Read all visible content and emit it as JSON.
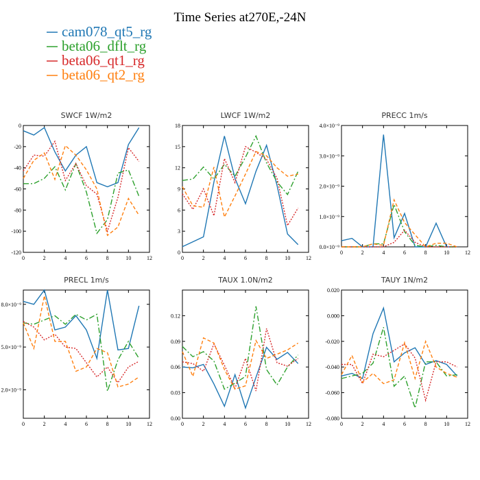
{
  "title": "Time Series at270E,-24N",
  "colors": {
    "cam078_qt5_rg": "#1f77b4",
    "beta06_dflt_rg": "#2ca02c",
    "beta06_qt1_rg": "#d62728",
    "beta06_qt2_rg": "#ff7f0e"
  },
  "legend": [
    {
      "name": "cam078_qt5_rg",
      "color": "#1f77b4",
      "dash": ""
    },
    {
      "name": "beta06_dflt_rg",
      "color": "#2ca02c",
      "dash": "8,3,2,3"
    },
    {
      "name": "beta06_qt1_rg",
      "color": "#d62728",
      "dash": "2,2"
    },
    {
      "name": "beta06_qt2_rg",
      "color": "#ff7f0e",
      "dash": "5,3"
    }
  ],
  "chart_data": [
    {
      "type": "line",
      "title": "SWCF   1W/m2",
      "x": [
        0,
        1,
        2,
        3,
        4,
        5,
        6,
        7,
        8,
        9,
        10,
        11
      ],
      "xlim": [
        0,
        12
      ],
      "xticks": [
        0,
        2,
        4,
        6,
        8,
        10,
        12
      ],
      "ylim": [
        -120,
        0
      ],
      "yticks": [
        -120,
        -100,
        -80,
        -60,
        -40,
        -20,
        0
      ],
      "ytick_labels": [
        "-120",
        "-100",
        "-80",
        "-60",
        "-40",
        "-20",
        "0"
      ],
      "series": [
        {
          "name": "cam078_qt5_rg",
          "values": [
            -5,
            -9,
            -2,
            -25,
            -43,
            -28,
            -20,
            -54,
            -58,
            -54,
            -18,
            -2
          ]
        },
        {
          "name": "beta06_dflt_rg",
          "values": [
            -55,
            -55,
            -50,
            -39,
            -61,
            -36,
            -63,
            -102,
            -89,
            -45,
            -42,
            -67
          ]
        },
        {
          "name": "beta06_qt1_rg",
          "values": [
            -43,
            -28,
            -29,
            -15,
            -52,
            -36,
            -57,
            -65,
            -100,
            -68,
            -21,
            -34
          ]
        },
        {
          "name": "beta06_qt2_rg",
          "values": [
            -50,
            -33,
            -26,
            -51,
            -19,
            -28,
            -42,
            -60,
            -104,
            -96,
            -69,
            -85
          ]
        }
      ]
    },
    {
      "type": "line",
      "title": "LWCF   1W/m2",
      "x": [
        0,
        1,
        2,
        3,
        4,
        5,
        6,
        7,
        8,
        9,
        10,
        11
      ],
      "xlim": [
        0,
        12
      ],
      "xticks": [
        0,
        2,
        4,
        6,
        8,
        10,
        12
      ],
      "ylim": [
        0,
        18
      ],
      "yticks": [
        0,
        3,
        6,
        9,
        12,
        15,
        18
      ],
      "ytick_labels": [
        "0",
        "3",
        "6",
        "9",
        "12",
        "15",
        "18"
      ],
      "series": [
        {
          "name": "cam078_qt5_rg",
          "values": [
            0.8,
            1.5,
            2.2,
            10,
            16.5,
            10.5,
            6.9,
            11.5,
            15.2,
            9.5,
            2.6,
            1.1
          ]
        },
        {
          "name": "beta06_dflt_rg",
          "values": [
            10.2,
            10.4,
            12.1,
            10.4,
            12.5,
            10.8,
            13.5,
            16.5,
            12.7,
            10,
            8.2,
            11.5
          ]
        },
        {
          "name": "beta06_qt1_rg",
          "values": [
            8.3,
            6.1,
            9,
            5.2,
            13.3,
            9.9,
            15,
            14.2,
            13.2,
            10.5,
            3.8,
            6.3
          ]
        },
        {
          "name": "beta06_qt2_rg",
          "values": [
            9.3,
            6.6,
            6.4,
            12.1,
            5,
            8,
            11.1,
            14.3,
            13.7,
            12,
            10.8,
            11.1
          ]
        }
      ]
    },
    {
      "type": "line",
      "title": "PRECC   1m/s",
      "x": [
        0,
        1,
        2,
        3,
        4,
        5,
        6,
        7,
        8,
        9,
        10,
        11
      ],
      "xlim": [
        0,
        12
      ],
      "xticks": [
        0,
        2,
        4,
        6,
        8,
        10,
        12
      ],
      "ylim": [
        0,
        4e-09
      ],
      "yticks": [
        0,
        1e-09,
        2e-09,
        3e-09,
        4e-09
      ],
      "ytick_labels": [
        "0.0×10⁻⁹",
        "1.0×10⁻⁹",
        "2.0×10⁻⁹",
        "3.0×10⁻⁹",
        "4.0×10⁻⁹"
      ],
      "series": [
        {
          "name": "cam078_qt5_rg",
          "values": [
            2e-10,
            2.8e-10,
            0,
            0,
            3.7e-09,
            3e-10,
            1.1e-09,
            0,
            0,
            7.8e-10,
            0,
            0
          ]
        },
        {
          "name": "beta06_dflt_rg",
          "values": [
            0,
            0,
            0,
            1e-10,
            1e-10,
            1.4e-09,
            5e-10,
            5e-11,
            0,
            5e-11,
            0,
            0
          ]
        },
        {
          "name": "beta06_qt1_rg",
          "values": [
            0,
            0,
            0,
            0,
            0,
            1.5e-10,
            5.5e-10,
            1.5e-10,
            0,
            0,
            0,
            0
          ]
        },
        {
          "name": "beta06_qt2_rg",
          "values": [
            0,
            0,
            0,
            1e-10,
            5e-11,
            1.55e-09,
            8e-10,
            4e-10,
            0,
            1.2e-10,
            1.2e-10,
            0
          ]
        }
      ]
    },
    {
      "type": "line",
      "title": "PRECL   1m/s",
      "x": [
        0,
        1,
        2,
        3,
        4,
        5,
        6,
        7,
        8,
        9,
        10,
        11
      ],
      "xlim": [
        0,
        12
      ],
      "xticks": [
        0,
        2,
        4,
        6,
        8,
        10,
        12
      ],
      "ylim": [
        0,
        9e-09
      ],
      "yticks": [
        2e-09,
        5e-09,
        8e-09
      ],
      "ytick_labels": [
        "2.0×10⁻⁹",
        "5.0×10⁻⁹",
        "8.0×10⁻⁹"
      ],
      "series": [
        {
          "name": "cam078_qt5_rg",
          "values": [
            8.2e-09,
            8e-09,
            9e-09,
            6.2e-09,
            6.4e-09,
            7.2e-09,
            6.2e-09,
            4.2e-09,
            9e-09,
            4.8e-09,
            4.9e-09,
            7.9e-09
          ]
        },
        {
          "name": "beta06_dflt_rg",
          "values": [
            6.7e-09,
            6.6e-09,
            6.9e-09,
            7.2e-09,
            6.6e-09,
            7.3e-09,
            6.9e-09,
            7.3e-09,
            1.9e-09,
            4.1e-09,
            5.4e-09,
            4.2e-09
          ]
        },
        {
          "name": "beta06_qt1_rg",
          "values": [
            6.8e-09,
            6.4e-09,
            5.5e-09,
            5.9e-09,
            5e-09,
            4.9e-09,
            3.9e-09,
            2.9e-09,
            3.6e-09,
            2.5e-09,
            3.6e-09,
            4e-09
          ]
        },
        {
          "name": "beta06_qt2_rg",
          "values": [
            6.7e-09,
            4.9e-09,
            8.6e-09,
            5.4e-09,
            5.4e-09,
            3.3e-09,
            3.6e-09,
            4.9e-09,
            4.6e-09,
            2.2e-09,
            2.4e-09,
            2.9e-09
          ]
        }
      ]
    },
    {
      "type": "line",
      "title": "TAUX   1.0N/m2",
      "x": [
        0,
        1,
        2,
        3,
        4,
        5,
        6,
        7,
        8,
        9,
        10,
        11
      ],
      "xlim": [
        0,
        12
      ],
      "xticks": [
        0,
        2,
        4,
        6,
        8,
        10,
        12
      ],
      "ylim": [
        0,
        0.15
      ],
      "yticks": [
        0,
        0.03,
        0.06,
        0.09,
        0.12
      ],
      "ytick_labels": [
        "0.00",
        "0.03",
        "0.06",
        "0.09",
        "0.12"
      ],
      "series": [
        {
          "name": "cam078_qt5_rg",
          "values": [
            0.06,
            0.059,
            0.063,
            0.04,
            0.014,
            0.051,
            0.012,
            0.048,
            0.083,
            0.069,
            0.077,
            0.064
          ]
        },
        {
          "name": "beta06_dflt_rg",
          "values": [
            0.084,
            0.072,
            0.078,
            0.067,
            0.034,
            0.041,
            0.049,
            0.131,
            0.057,
            0.039,
            0.06,
            0.074
          ]
        },
        {
          "name": "beta06_qt1_rg",
          "values": [
            0.066,
            0.064,
            0.055,
            0.087,
            0.062,
            0.035,
            0.07,
            0.032,
            0.105,
            0.065,
            0.061,
            0.07
          ]
        },
        {
          "name": "beta06_qt2_rg",
          "values": [
            0.078,
            0.049,
            0.094,
            0.088,
            0.057,
            0.034,
            0.038,
            0.091,
            0.07,
            0.075,
            0.08,
            0.088
          ]
        }
      ]
    },
    {
      "type": "line",
      "title": "TAUY   1N/m2",
      "x": [
        0,
        1,
        2,
        3,
        4,
        5,
        6,
        7,
        8,
        9,
        10,
        11
      ],
      "xlim": [
        0,
        12
      ],
      "xticks": [
        0,
        2,
        4,
        6,
        8,
        10,
        12
      ],
      "ylim": [
        -0.08,
        0.02
      ],
      "yticks": [
        -0.08,
        -0.06,
        -0.04,
        -0.02,
        0,
        0.02
      ],
      "ytick_labels": [
        "-0.080",
        "-0.060",
        "-0.040",
        "-0.020",
        "0.000",
        "0.020"
      ],
      "series": [
        {
          "name": "cam078_qt5_rg",
          "values": [
            -0.047,
            -0.045,
            -0.049,
            -0.014,
            0.006,
            -0.036,
            -0.029,
            -0.025,
            -0.038,
            -0.035,
            -0.038,
            -0.047
          ]
        },
        {
          "name": "beta06_dflt_rg",
          "values": [
            -0.049,
            -0.047,
            -0.045,
            -0.037,
            -0.009,
            -0.055,
            -0.047,
            -0.072,
            -0.036,
            -0.036,
            -0.047,
            -0.046
          ]
        },
        {
          "name": "beta06_qt1_rg",
          "values": [
            -0.038,
            -0.038,
            -0.053,
            -0.03,
            -0.032,
            -0.027,
            -0.022,
            -0.033,
            -0.066,
            -0.036,
            -0.036,
            -0.04
          ]
        },
        {
          "name": "beta06_qt2_rg",
          "values": [
            -0.046,
            -0.031,
            -0.052,
            -0.045,
            -0.053,
            -0.05,
            -0.021,
            -0.049,
            -0.02,
            -0.04,
            -0.045,
            -0.048
          ]
        }
      ]
    }
  ]
}
